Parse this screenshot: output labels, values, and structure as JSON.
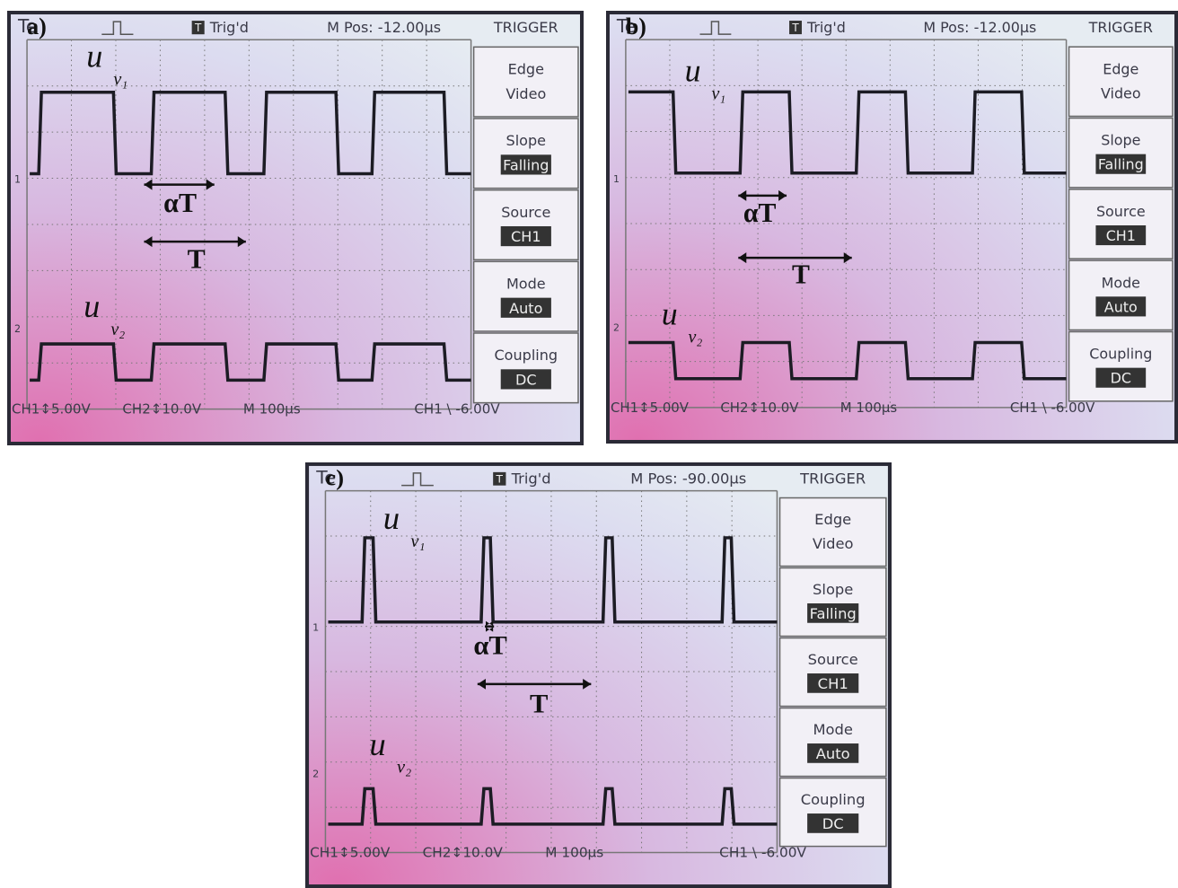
{
  "panels": [
    {
      "label": "a)",
      "brand": "Te",
      "trigger_icon": "T",
      "status": "Trig'd",
      "position": "M Pos: -12.00µs",
      "menu_title": "TRIGGER",
      "menu": [
        {
          "top": "Edge",
          "bottom": "Video"
        },
        {
          "top": "Slope",
          "bottom": "Falling"
        },
        {
          "top": "Source",
          "bottom": "CH1"
        },
        {
          "top": "Mode",
          "bottom": "Auto"
        },
        {
          "top": "Coupling",
          "bottom": "DC"
        }
      ],
      "channel_markers": [
        "1",
        "2"
      ],
      "footer": [
        "CH1↕5.00V",
        "CH2↕10.0V",
        "M 100µs",
        "CH1 \\ -6.00V"
      ],
      "signal_1": {
        "symbol": "u",
        "subscript": "v₁"
      },
      "signal_2": {
        "symbol": "u",
        "subscript": "v₂"
      },
      "duty_label": "αT",
      "period_label": "T"
    },
    {
      "label": "b)",
      "brand": "Te",
      "trigger_icon": "T",
      "status": "Trig'd",
      "position": "M Pos: -12.00µs",
      "menu_title": "TRIGGER",
      "menu": [
        {
          "top": "Edge",
          "bottom": "Video"
        },
        {
          "top": "Slope",
          "bottom": "Falling"
        },
        {
          "top": "Source",
          "bottom": "CH1"
        },
        {
          "top": "Mode",
          "bottom": "Auto"
        },
        {
          "top": "Coupling",
          "bottom": "DC"
        }
      ],
      "channel_markers": [
        "1",
        "2"
      ],
      "footer": [
        "CH1↕5.00V",
        "CH2↕10.0V",
        "M 100µs",
        "CH1 \\ -6.00V"
      ],
      "signal_1": {
        "symbol": "u",
        "subscript": "v₁"
      },
      "signal_2": {
        "symbol": "u",
        "subscript": "v₂"
      },
      "duty_label": "αT",
      "period_label": "T"
    },
    {
      "label": "c)",
      "brand": "Te",
      "trigger_icon": "T",
      "status": "Trig'd",
      "position": "M Pos: -90.00µs",
      "menu_title": "TRIGGER",
      "menu": [
        {
          "top": "Edge",
          "bottom": "Video"
        },
        {
          "top": "Slope",
          "bottom": "Falling"
        },
        {
          "top": "Source",
          "bottom": "CH1"
        },
        {
          "top": "Mode",
          "bottom": "Auto"
        },
        {
          "top": "Coupling",
          "bottom": "DC"
        }
      ],
      "channel_markers": [
        "1",
        "2"
      ],
      "footer": [
        "CH1↕5.00V",
        "CH2↕10.0V",
        "M 100µs",
        "CH1 \\ -6.00V"
      ],
      "signal_1": {
        "symbol": "u",
        "subscript": "v₁"
      },
      "signal_2": {
        "symbol": "u",
        "subscript": "v₂"
      },
      "duty_label": "αT",
      "period_label": "T"
    }
  ]
}
